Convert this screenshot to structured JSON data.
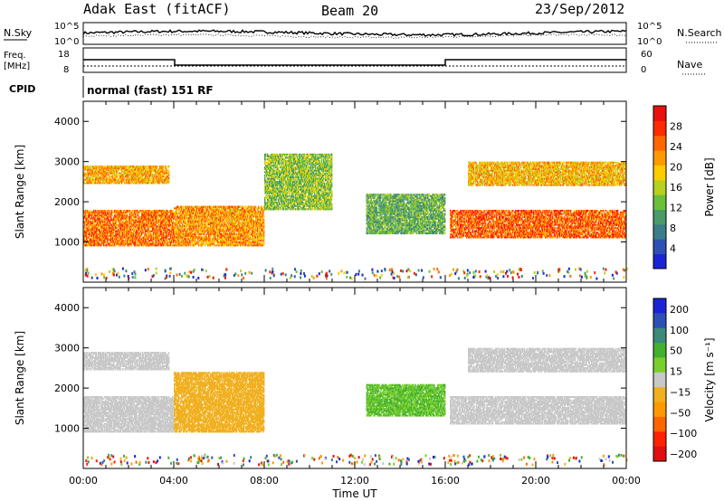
{
  "header": {
    "title": "Adak East (fitACF)",
    "beam": "Beam 20",
    "date": "23/Sep/2012"
  },
  "side_labels": {
    "nsky": "N.Sky",
    "nsearch": "N.Search",
    "freq_line1": "Freq.",
    "freq_line2": "[MHz]",
    "nave": "Nave",
    "cpid": "CPID",
    "cpid_value": "normal (fast) 151 RF"
  },
  "noise_axis": {
    "left_ticks": [
      "10^5",
      "10^0"
    ],
    "right_ticks": [
      "10^5",
      "10^0"
    ]
  },
  "freq_axis": {
    "left_ticks": [
      "18",
      "8"
    ],
    "right_ticks": [
      "60",
      "0"
    ]
  },
  "x_axis": {
    "label": "Time UT",
    "ticks": [
      "00:00",
      "04:00",
      "08:00",
      "12:00",
      "16:00",
      "20:00",
      "00:00"
    ],
    "range_hours": [
      0,
      24
    ]
  },
  "colors": {
    "power_scale": [
      "#1a24d6",
      "#2d50b4",
      "#3b7d8a",
      "#4a9a6a",
      "#6bbf3a",
      "#b8d020",
      "#ffcc00",
      "#ff9900",
      "#ff6600",
      "#ff2a00",
      "#e81010"
    ],
    "velocity_scale": [
      "#1a24d6",
      "#2d50b4",
      "#3b8a7a",
      "#44b030",
      "#7ad02a",
      "#c8c8c8",
      "#f0b020",
      "#ff9900",
      "#ff6600",
      "#ff2200",
      "#e01010"
    ]
  },
  "chart_data": [
    {
      "type": "heatmap",
      "panel": "power",
      "ylabel": "Slant Range [km]",
      "yticks": [
        1000,
        2000,
        3000,
        4000
      ],
      "ylim": [
        0,
        4500
      ],
      "colorbar": {
        "label": "Power [dB]",
        "ticks": [
          4,
          8,
          12,
          16,
          20,
          24,
          28
        ],
        "range": [
          0,
          32
        ]
      },
      "bands": [
        {
          "t0": 0,
          "t1": 4,
          "r0": 900,
          "r1": 1800,
          "value": 24
        },
        {
          "t0": 0,
          "t1": 3.8,
          "r0": 2450,
          "r1": 2900,
          "value": 21
        },
        {
          "t0": 4,
          "t1": 8,
          "r0": 900,
          "r1": 1900,
          "value": 22
        },
        {
          "t0": 8,
          "t1": 11,
          "r0": 1800,
          "r1": 3200,
          "value": 14
        },
        {
          "t0": 12.5,
          "t1": 16,
          "r0": 1200,
          "r1": 2200,
          "value": 12
        },
        {
          "t0": 16.2,
          "t1": 24,
          "r0": 1100,
          "r1": 1800,
          "value": 25
        },
        {
          "t0": 17,
          "t1": 24,
          "r0": 2400,
          "r1": 3000,
          "value": 20
        }
      ]
    },
    {
      "type": "heatmap",
      "panel": "velocity",
      "ylabel": "Slant Range [km]",
      "yticks": [
        1000,
        2000,
        3000,
        4000
      ],
      "ylim": [
        0,
        4500
      ],
      "colorbar": {
        "label": "Velocity [m s⁻¹]",
        "ticks": [
          "200",
          "100",
          "50",
          "15",
          "−15",
          "−50",
          "−100",
          "−200"
        ]
      },
      "bands": [
        {
          "t0": 0,
          "t1": 4,
          "r0": 900,
          "r1": 1800,
          "value": 0
        },
        {
          "t0": 0,
          "t1": 3.8,
          "r0": 2450,
          "r1": 2900,
          "value": 0
        },
        {
          "t0": 4,
          "t1": 8,
          "r0": 900,
          "r1": 2400,
          "value": -40
        },
        {
          "t0": 12.5,
          "t1": 16,
          "r0": 1300,
          "r1": 2100,
          "value": 60
        },
        {
          "t0": 16.2,
          "t1": 24,
          "r0": 1100,
          "r1": 1800,
          "value": 0
        },
        {
          "t0": 17,
          "t1": 24,
          "r0": 2400,
          "r1": 3000,
          "value": 0
        }
      ]
    }
  ]
}
